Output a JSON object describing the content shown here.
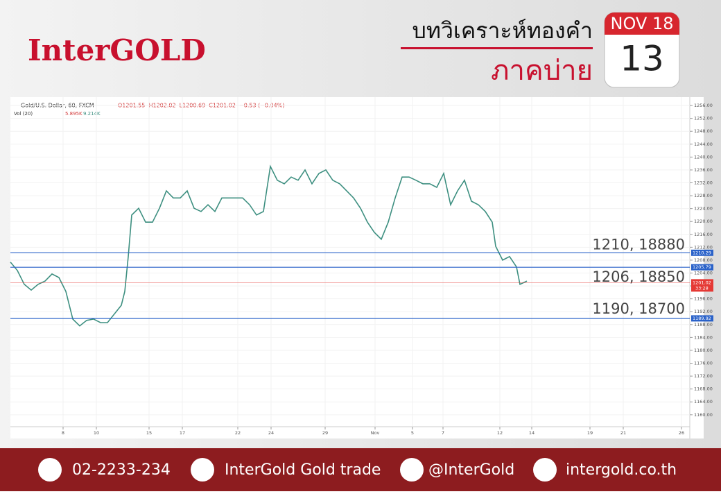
{
  "header": {
    "logo": "InterGOLD",
    "title": "บทวิเคราะห์ทองคำ",
    "subtitle": "ภาคบ่าย",
    "calendar": {
      "month": "NOV 18",
      "day": "13"
    }
  },
  "chart_data": {
    "type": "line",
    "symbol": "Gold/U.S. Dollar, 60, FXCM",
    "ohlc": "O1201.55  H1202.02  L1200.69  C1201.02  −0.53 (−0.04%)",
    "volume_label": "Vol (20)",
    "volume_values": [
      "5.895K",
      "9.214K"
    ],
    "color": "#3d8f80",
    "x": [
      0,
      5,
      10,
      15,
      20,
      25,
      30,
      35,
      40,
      45,
      50,
      55,
      60,
      65,
      70,
      80,
      82.5,
      85,
      87.5,
      92.5,
      97.5,
      102.5,
      107.5,
      112.5,
      117.5,
      122.5,
      127.5,
      132.5,
      137.5,
      142.5,
      147.5,
      152.5,
      157.5,
      162.5,
      167.5,
      172.5,
      177.5,
      182.5,
      187.5,
      192.5,
      197.5,
      202.5,
      207.5,
      212.5,
      217.5,
      222.5,
      227.5,
      232.5,
      237.5,
      242.5,
      247.5,
      252.5,
      257.5,
      262.5,
      267.5,
      272.5,
      277.5,
      282.5,
      287.5,
      292.5,
      297.5,
      302.5,
      307.5,
      312.5,
      317.5,
      322.5,
      327.5,
      332.5,
      337.5,
      342.5,
      347.5,
      350,
      355,
      360,
      365,
      367.5,
      372.5
    ],
    "values": [
      1207.4,
      1204.8,
      1200.5,
      1198.7,
      1200.5,
      1201.5,
      1203.7,
      1202.6,
      1198.3,
      1189.7,
      1187.6,
      1189.3,
      1189.7,
      1188.6,
      1188.6,
      1194.0,
      1198.3,
      1209.1,
      1222.0,
      1224.1,
      1219.8,
      1219.8,
      1224.1,
      1229.5,
      1227.3,
      1227.3,
      1229.5,
      1224.1,
      1223.1,
      1225.2,
      1223.1,
      1227.3,
      1227.3,
      1227.3,
      1227.3,
      1225.2,
      1222.0,
      1223.1,
      1237.1,
      1232.8,
      1231.7,
      1233.8,
      1232.8,
      1236.0,
      1231.7,
      1234.9,
      1236.0,
      1232.8,
      1231.7,
      1229.5,
      1227.3,
      1224.1,
      1219.8,
      1216.6,
      1214.5,
      1219.8,
      1227.3,
      1233.8,
      1233.8,
      1232.8,
      1231.7,
      1231.7,
      1230.6,
      1234.9,
      1225.2,
      1229.5,
      1232.8,
      1226.3,
      1225.2,
      1223.1,
      1219.8,
      1212.3,
      1208.0,
      1209.1,
      1205.9,
      1200.5,
      1201.5
    ],
    "xlim": [
      0,
      490
    ],
    "xticks": [
      {
        "value": 38,
        "label": "8"
      },
      {
        "value": 62,
        "label": "10"
      },
      {
        "value": 100,
        "label": "15"
      },
      {
        "value": 124,
        "label": "17"
      },
      {
        "value": 164,
        "label": "22"
      },
      {
        "value": 188,
        "label": "24"
      },
      {
        "value": 227,
        "label": "29"
      },
      {
        "value": 263,
        "label": "Nov"
      },
      {
        "value": 290,
        "label": "5"
      },
      {
        "value": 312,
        "label": "7"
      },
      {
        "value": 353,
        "label": "12"
      },
      {
        "value": 376,
        "label": "14"
      },
      {
        "value": 418,
        "label": "19"
      },
      {
        "value": 442,
        "label": "21"
      },
      {
        "value": 484,
        "label": "26"
      }
    ],
    "ylim": [
      1156.3,
      1258.6
    ],
    "yticks": [
      {
        "value": 1160,
        "label": "1160.00"
      },
      {
        "value": 1164,
        "label": "1164.00"
      },
      {
        "value": 1168,
        "label": "1168.00"
      },
      {
        "value": 1172,
        "label": "1172.00"
      },
      {
        "value": 1176,
        "label": "1176.00"
      },
      {
        "value": 1180,
        "label": "1180.00"
      },
      {
        "value": 1184,
        "label": "1184.00"
      },
      {
        "value": 1188,
        "label": "1188.00"
      },
      {
        "value": 1192,
        "label": "1192.00"
      },
      {
        "value": 1196,
        "label": "1196.00"
      },
      {
        "value": 1200,
        "label": "1200.00"
      },
      {
        "value": 1204,
        "label": "1204.00"
      },
      {
        "value": 1208,
        "label": "1208.00"
      },
      {
        "value": 1212,
        "label": "1212.00"
      },
      {
        "value": 1216,
        "label": "1216.00"
      },
      {
        "value": 1220,
        "label": "1220.00"
      },
      {
        "value": 1224,
        "label": "1224.00"
      },
      {
        "value": 1228,
        "label": "1228.00"
      },
      {
        "value": 1232,
        "label": "1232.00"
      },
      {
        "value": 1236,
        "label": "1236.00"
      },
      {
        "value": 1240,
        "label": "1240.00"
      },
      {
        "value": 1244,
        "label": "1244.00"
      },
      {
        "value": 1248,
        "label": "1248.00"
      },
      {
        "value": 1252,
        "label": "1252.00"
      },
      {
        "value": 1256,
        "label": "1256.00"
      }
    ],
    "hlines": [
      {
        "value": 1210.29,
        "annotation": "1210, 18880",
        "color": "#2a62c9"
      },
      {
        "value": 1205.79,
        "annotation": "1206, 18850",
        "color": "#2a62c9"
      },
      {
        "value": 1189.92,
        "annotation": "1190, 18700",
        "color": "#2a62c9"
      }
    ],
    "last_price": {
      "value": 1201.02,
      "timer": "33:28",
      "color": "#e53935"
    }
  },
  "footer": {
    "phone": "02-2233-234",
    "facebook": "InterGold Gold trade",
    "line": "@InterGold",
    "website": "intergold.co.th"
  }
}
